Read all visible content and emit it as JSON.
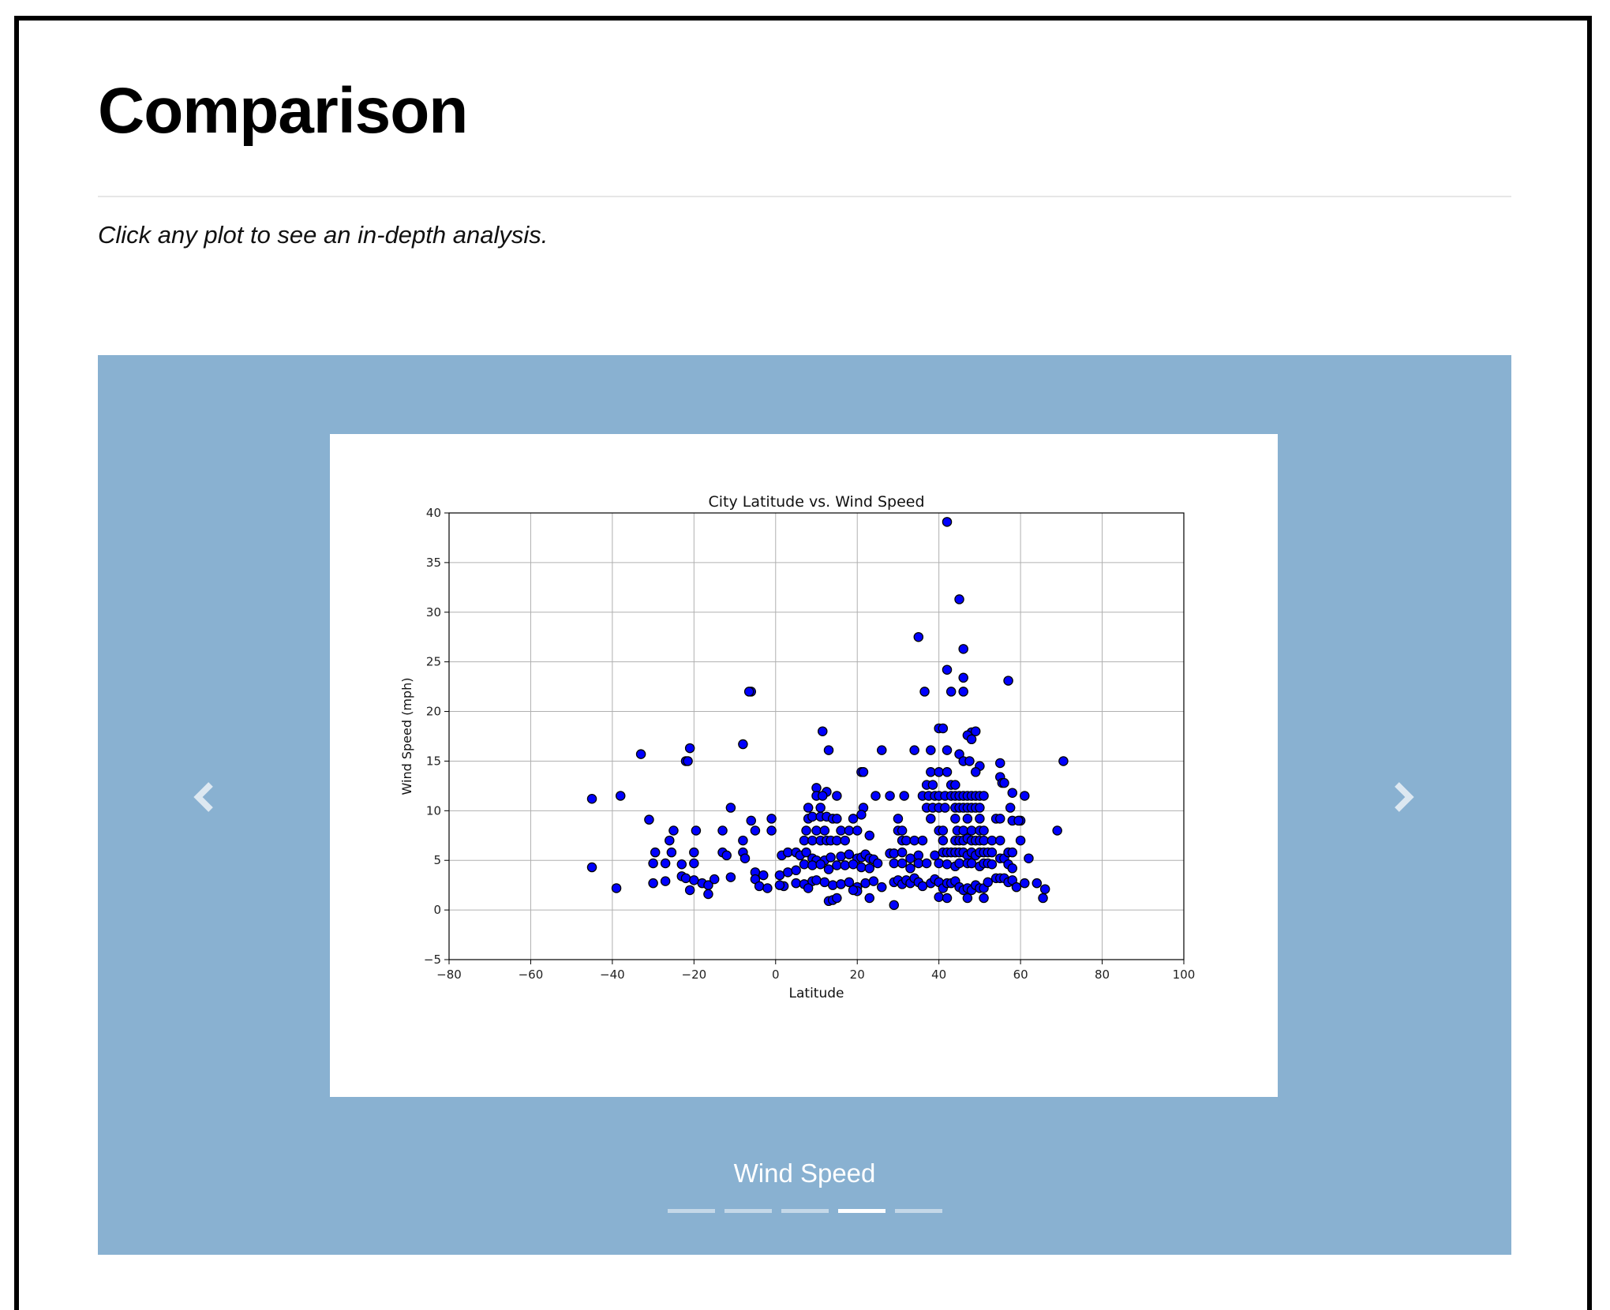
{
  "page": {
    "title": "Comparison",
    "lead": "Click any plot to see an in-depth analysis."
  },
  "carousel": {
    "caption": "Wind Speed",
    "slide_count": 5,
    "active_index": 3,
    "prev_icon": "chevron-left-icon",
    "next_icon": "chevron-right-icon",
    "background_color": "#89b1d1"
  },
  "chart_data": {
    "type": "scatter",
    "title": "City Latitude vs. Wind Speed",
    "xlabel": "Latitude",
    "ylabel": "Wind Speed (mph)",
    "xlim": [
      -80,
      100
    ],
    "ylim": [
      -5,
      40
    ],
    "xticks": [
      -80,
      -60,
      -40,
      -20,
      0,
      20,
      40,
      60,
      80,
      100
    ],
    "yticks": [
      -5,
      0,
      5,
      10,
      15,
      20,
      25,
      30,
      35,
      40
    ],
    "xtick_labels": [
      "−80",
      "−60",
      "−40",
      "−20",
      "0",
      "20",
      "40",
      "60",
      "80",
      "100"
    ],
    "ytick_labels": [
      "−5",
      "0",
      "5",
      "10",
      "15",
      "20",
      "25",
      "30",
      "35",
      "40"
    ],
    "grid": true,
    "marker_color": "#0000ff",
    "marker_edge": "#000000",
    "points": [
      [
        42,
        39.1
      ],
      [
        45,
        31.3
      ],
      [
        35,
        27.5
      ],
      [
        46,
        26.3
      ],
      [
        42,
        24.2
      ],
      [
        46,
        23.4
      ],
      [
        57,
        23.1
      ],
      [
        36.5,
        22
      ],
      [
        43,
        22
      ],
      [
        46,
        22
      ],
      [
        -6,
        22
      ],
      [
        -6.5,
        22
      ],
      [
        40,
        18.3
      ],
      [
        41,
        18.3
      ],
      [
        48,
        17.9
      ],
      [
        49,
        18
      ],
      [
        47,
        17.6
      ],
      [
        48,
        17.2
      ],
      [
        11.5,
        18
      ],
      [
        -8,
        16.7
      ],
      [
        -21,
        16.3
      ],
      [
        -33,
        15.7
      ],
      [
        -22,
        15
      ],
      [
        -21.5,
        15
      ],
      [
        13,
        16.1
      ],
      [
        26,
        16.1
      ],
      [
        34,
        16.1
      ],
      [
        38,
        16.1
      ],
      [
        42,
        16.1
      ],
      [
        45,
        15.7
      ],
      [
        46,
        15
      ],
      [
        47.5,
        15
      ],
      [
        50,
        14.5
      ],
      [
        55,
        14.8
      ],
      [
        70.5,
        15
      ],
      [
        21,
        13.9
      ],
      [
        21.5,
        13.9
      ],
      [
        38,
        13.9
      ],
      [
        40,
        13.9
      ],
      [
        42,
        13.9
      ],
      [
        49,
        13.9
      ],
      [
        55,
        13.4
      ],
      [
        37,
        12.6
      ],
      [
        38.5,
        12.6
      ],
      [
        43,
        12.6
      ],
      [
        44,
        12.6
      ],
      [
        55.5,
        12.8
      ],
      [
        56,
        12.8
      ],
      [
        10,
        12.3
      ],
      [
        12.5,
        11.9
      ],
      [
        58,
        11.8
      ],
      [
        -45,
        11.2
      ],
      [
        -38,
        11.5
      ],
      [
        24.5,
        11.5
      ],
      [
        28,
        11.5
      ],
      [
        31.5,
        11.5
      ],
      [
        36,
        11.5
      ],
      [
        37.5,
        11.5
      ],
      [
        39,
        11.5
      ],
      [
        40,
        11.5
      ],
      [
        41.5,
        11.5
      ],
      [
        43,
        11.5
      ],
      [
        44,
        11.5
      ],
      [
        45,
        11.5
      ],
      [
        46,
        11.5
      ],
      [
        47,
        11.5
      ],
      [
        48,
        11.5
      ],
      [
        49,
        11.5
      ],
      [
        50,
        11.5
      ],
      [
        51,
        11.5
      ],
      [
        61,
        11.5
      ],
      [
        15,
        11.5
      ],
      [
        10,
        11.5
      ],
      [
        11.5,
        11.5
      ],
      [
        -11,
        10.3
      ],
      [
        8,
        10.3
      ],
      [
        11,
        10.3
      ],
      [
        21.5,
        10.3
      ],
      [
        37,
        10.3
      ],
      [
        38.5,
        10.3
      ],
      [
        40,
        10.3
      ],
      [
        41.5,
        10.3
      ],
      [
        44,
        10.3
      ],
      [
        45,
        10.3
      ],
      [
        46,
        10.3
      ],
      [
        47,
        10.3
      ],
      [
        48,
        10.3
      ],
      [
        49,
        10.3
      ],
      [
        50,
        10.3
      ],
      [
        57.5,
        10.3
      ],
      [
        58,
        9
      ],
      [
        60,
        9
      ],
      [
        59.5,
        9
      ],
      [
        -31,
        9.1
      ],
      [
        -6,
        9
      ],
      [
        -1,
        9.2
      ],
      [
        8,
        9.2
      ],
      [
        9,
        9.4
      ],
      [
        11,
        9.4
      ],
      [
        12.5,
        9.4
      ],
      [
        14,
        9.2
      ],
      [
        15,
        9.2
      ],
      [
        19,
        9.2
      ],
      [
        21,
        9.6
      ],
      [
        30,
        9.2
      ],
      [
        38,
        9.2
      ],
      [
        44,
        9.2
      ],
      [
        47,
        9.2
      ],
      [
        50,
        9.2
      ],
      [
        54,
        9.2
      ],
      [
        55,
        9.2
      ],
      [
        7.5,
        8
      ],
      [
        10,
        8
      ],
      [
        12,
        8
      ],
      [
        16,
        8
      ],
      [
        18,
        8
      ],
      [
        20,
        8
      ],
      [
        30,
        8
      ],
      [
        31,
        8
      ],
      [
        40,
        8
      ],
      [
        41,
        8
      ],
      [
        44.5,
        8
      ],
      [
        46,
        8
      ],
      [
        48,
        8
      ],
      [
        50,
        8
      ],
      [
        51,
        8
      ],
      [
        69,
        8
      ],
      [
        -25,
        8
      ],
      [
        -19.5,
        8
      ],
      [
        -13,
        8
      ],
      [
        -5,
        8
      ],
      [
        -1,
        8
      ],
      [
        7,
        7
      ],
      [
        9,
        7
      ],
      [
        11,
        7
      ],
      [
        12.5,
        7
      ],
      [
        13.5,
        7
      ],
      [
        15,
        7
      ],
      [
        17,
        7
      ],
      [
        23,
        7.5
      ],
      [
        31,
        7
      ],
      [
        32,
        7
      ],
      [
        34,
        7
      ],
      [
        36,
        7
      ],
      [
        41,
        7
      ],
      [
        44,
        7
      ],
      [
        45,
        7
      ],
      [
        46,
        7
      ],
      [
        47,
        7.2
      ],
      [
        48,
        7
      ],
      [
        49,
        7
      ],
      [
        50,
        7
      ],
      [
        51,
        7
      ],
      [
        53,
        7
      ],
      [
        55,
        7
      ],
      [
        60,
        7
      ],
      [
        -26,
        7
      ],
      [
        -8,
        7
      ],
      [
        -20,
        5.8
      ],
      [
        -13,
        5.8
      ],
      [
        -12,
        5.5
      ],
      [
        -8,
        5.8
      ],
      [
        -7.5,
        5.2
      ],
      [
        1.5,
        5.5
      ],
      [
        3,
        5.8
      ],
      [
        5,
        5.8
      ],
      [
        6,
        5.5
      ],
      [
        7.5,
        5.8
      ],
      [
        9,
        5.2
      ],
      [
        10,
        5
      ],
      [
        12,
        5
      ],
      [
        13.5,
        5.3
      ],
      [
        16,
        5.4
      ],
      [
        18,
        5.6
      ],
      [
        20,
        5.2
      ],
      [
        21,
        5.3
      ],
      [
        22,
        5.6
      ],
      [
        23,
        5.2
      ],
      [
        24,
        5.1
      ],
      [
        28,
        5.7
      ],
      [
        29,
        5.7
      ],
      [
        31,
        5.8
      ],
      [
        33,
        5.2
      ],
      [
        35,
        5.5
      ],
      [
        39,
        5.5
      ],
      [
        41,
        5.8
      ],
      [
        42,
        5.8
      ],
      [
        43,
        5.8
      ],
      [
        44,
        5.8
      ],
      [
        45,
        5.8
      ],
      [
        46,
        5.8
      ],
      [
        47,
        5.5
      ],
      [
        48,
        5.8
      ],
      [
        49,
        5.5
      ],
      [
        50,
        5.8
      ],
      [
        51,
        5.8
      ],
      [
        52,
        5.8
      ],
      [
        53,
        5.8
      ],
      [
        55,
        5.2
      ],
      [
        56,
        5.2
      ],
      [
        57,
        5.8
      ],
      [
        58,
        5.8
      ],
      [
        62,
        5.2
      ],
      [
        -29.5,
        5.8
      ],
      [
        -25.5,
        5.8
      ],
      [
        -30,
        4.7
      ],
      [
        -27,
        4.7
      ],
      [
        -23,
        4.6
      ],
      [
        -20,
        4.7
      ],
      [
        -5,
        3.8
      ],
      [
        -3,
        3.5
      ],
      [
        1,
        3.5
      ],
      [
        3,
        3.8
      ],
      [
        5,
        4
      ],
      [
        7,
        4.6
      ],
      [
        9,
        4.5
      ],
      [
        11,
        4.6
      ],
      [
        13,
        4.1
      ],
      [
        15,
        4.5
      ],
      [
        17,
        4.5
      ],
      [
        19,
        4.6
      ],
      [
        21,
        4.3
      ],
      [
        23,
        4.2
      ],
      [
        25,
        4.7
      ],
      [
        29,
        4.7
      ],
      [
        31,
        4.7
      ],
      [
        33,
        4.2
      ],
      [
        35,
        4.7
      ],
      [
        37,
        4.7
      ],
      [
        40,
        4.7
      ],
      [
        42,
        4.6
      ],
      [
        44,
        4.4
      ],
      [
        45,
        4.7
      ],
      [
        47,
        4.7
      ],
      [
        48,
        4.7
      ],
      [
        50,
        4.4
      ],
      [
        51,
        4.7
      ],
      [
        52,
        4.7
      ],
      [
        53,
        4.6
      ],
      [
        57,
        4.6
      ],
      [
        58,
        4.2
      ],
      [
        -45,
        4.3
      ],
      [
        -30,
        2.7
      ],
      [
        -27,
        2.9
      ],
      [
        -23,
        3.4
      ],
      [
        -22,
        3.2
      ],
      [
        -20,
        3
      ],
      [
        -18,
        2.7
      ],
      [
        -16.5,
        2.5
      ],
      [
        -15,
        3.1
      ],
      [
        -11,
        3.3
      ],
      [
        -5,
        3.1
      ],
      [
        -4,
        2.4
      ],
      [
        -2,
        2.2
      ],
      [
        2,
        2.4
      ],
      [
        5,
        2.7
      ],
      [
        7,
        2.6
      ],
      [
        9,
        2.9
      ],
      [
        10,
        3
      ],
      [
        12,
        2.8
      ],
      [
        14,
        2.5
      ],
      [
        16,
        2.6
      ],
      [
        18,
        2.8
      ],
      [
        20,
        2.3
      ],
      [
        22,
        2.7
      ],
      [
        24,
        2.9
      ],
      [
        26,
        2.3
      ],
      [
        29,
        2.8
      ],
      [
        30,
        3
      ],
      [
        31,
        2.6
      ],
      [
        32,
        3
      ],
      [
        33,
        2.7
      ],
      [
        34,
        3.2
      ],
      [
        35,
        2.8
      ],
      [
        36,
        2.4
      ],
      [
        38,
        2.7
      ],
      [
        39,
        3.1
      ],
      [
        40,
        2.8
      ],
      [
        41,
        2.2
      ],
      [
        42,
        2.7
      ],
      [
        43,
        2.7
      ],
      [
        44,
        2.9
      ],
      [
        45,
        2.3
      ],
      [
        46,
        2
      ],
      [
        47,
        2.2
      ],
      [
        48,
        2
      ],
      [
        49,
        2.5
      ],
      [
        50,
        2.2
      ],
      [
        51,
        2.2
      ],
      [
        52,
        2.8
      ],
      [
        54,
        3.2
      ],
      [
        55,
        3.2
      ],
      [
        56,
        3.2
      ],
      [
        57,
        2.8
      ],
      [
        58,
        3
      ],
      [
        59,
        2.3
      ],
      [
        61,
        2.7
      ],
      [
        64,
        2.7
      ],
      [
        66,
        2.1
      ],
      [
        -39,
        2.2
      ],
      [
        -21,
        2
      ],
      [
        -16.5,
        1.6
      ],
      [
        13,
        0.9
      ],
      [
        14,
        1
      ],
      [
        15,
        1.2
      ],
      [
        20,
        1.9
      ],
      [
        23,
        1.2
      ],
      [
        29,
        0.5
      ],
      [
        40,
        1.3
      ],
      [
        42,
        1.2
      ],
      [
        47,
        1.2
      ],
      [
        51,
        1.2
      ],
      [
        65.5,
        1.2
      ],
      [
        19,
        2
      ],
      [
        8,
        2.2
      ],
      [
        1,
        2.5
      ]
    ]
  }
}
